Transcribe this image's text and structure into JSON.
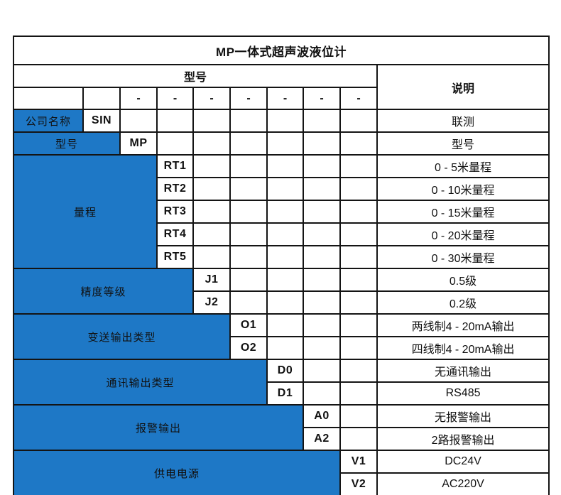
{
  "table": {
    "title": "MP一体式超声波液位计",
    "header": {
      "model_label": "型号",
      "desc_label": "说明"
    },
    "dash": "-",
    "dash_count": 7,
    "colors": {
      "accent_blue": "#1e78c6",
      "border_black": "#141414",
      "text_on_blue": "#ffffff",
      "text_black": "#111111",
      "background": "#ffffff"
    },
    "groups": [
      {
        "label": "公司名称",
        "span": 1,
        "rows": [
          {
            "code": "SIN",
            "desc": "联测"
          }
        ]
      },
      {
        "label": "型号",
        "span": 2,
        "rows": [
          {
            "code": "MP",
            "desc": "型号"
          }
        ]
      },
      {
        "label": "量程",
        "span": 3,
        "rows": [
          {
            "code": "RT1",
            "desc": "0 - 5米量程"
          },
          {
            "code": "RT2",
            "desc": "0 - 10米量程"
          },
          {
            "code": "RT3",
            "desc": "0 - 15米量程"
          },
          {
            "code": "RT4",
            "desc": "0 - 20米量程"
          },
          {
            "code": "RT5",
            "desc": "0 - 30米量程"
          }
        ]
      },
      {
        "label": "精度等级",
        "span": 4,
        "rows": [
          {
            "code": "J1",
            "desc": "0.5级"
          },
          {
            "code": "J2",
            "desc": "0.2级"
          }
        ]
      },
      {
        "label": "变送输出类型",
        "span": 5,
        "rows": [
          {
            "code": "O1",
            "desc": "两线制4 - 20mA输出"
          },
          {
            "code": "O2",
            "desc": "四线制4 - 20mA输出"
          }
        ]
      },
      {
        "label": "通讯输出类型",
        "span": 6,
        "rows": [
          {
            "code": "D0",
            "desc": "无通讯输出"
          },
          {
            "code": "D1",
            "desc": "RS485"
          }
        ]
      },
      {
        "label": "报警输出",
        "span": 7,
        "rows": [
          {
            "code": "A0",
            "desc": "无报警输出"
          },
          {
            "code": "A2",
            "desc": "2路报警输出"
          }
        ]
      },
      {
        "label": "供电电源",
        "span": 8,
        "rows": [
          {
            "code": "V1",
            "desc": "DC24V"
          },
          {
            "code": "V2",
            "desc": "AC220V"
          }
        ]
      }
    ]
  }
}
